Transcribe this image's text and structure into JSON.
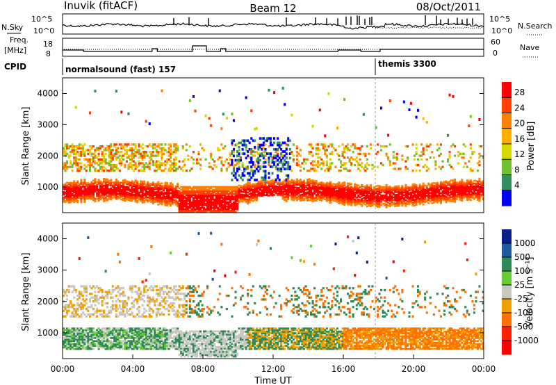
{
  "header": {
    "station": "Inuvik (fitACF)",
    "beam": "Beam 12",
    "date": "08/Oct/2011"
  },
  "noise_panel": {
    "left_label": "N.Sky",
    "right_label": "N.Search",
    "tick_top": "10^5",
    "tick_bottom": "10^0"
  },
  "freq_panel": {
    "left_label_1": "Freq.",
    "left_label_2": "[MHz]",
    "right_label": "Nave",
    "left_ticks": [
      "18",
      "8"
    ],
    "right_ticks": [
      "60",
      "0"
    ]
  },
  "cpid_panel": {
    "label": "CPID",
    "modes": [
      {
        "name": "normalsound (fast) 157",
        "start_hour": 0
      },
      {
        "name": "themis 3300",
        "start_hour": 18
      }
    ]
  },
  "chart_data": [
    {
      "type": "heatmap",
      "name": "power",
      "ylabel": "Slant Range [km]",
      "xlabel": "",
      "ylim": [
        180,
        4500
      ],
      "yticks": [
        "1000",
        "2000",
        "3000",
        "4000"
      ],
      "colorbar": {
        "label": "Power [dB]",
        "ticks": [
          "28",
          "24",
          "20",
          "16",
          "12",
          "8",
          "4"
        ],
        "colors": [
          "#ff0000",
          "#ff4000",
          "#ff8000",
          "#ffb000",
          "#d8d800",
          "#70c030",
          "#2f8f5f",
          "#0000ff"
        ]
      }
    },
    {
      "type": "heatmap",
      "name": "velocity",
      "ylabel": "Slant Range [km]",
      "xlabel": "Time UT",
      "ylim": [
        180,
        4500
      ],
      "yticks": [
        "1000",
        "2000",
        "3000",
        "4000"
      ],
      "xticks": [
        "00:00",
        "04:00",
        "08:00",
        "12:00",
        "16:00",
        "20:00",
        "00:00"
      ],
      "colorbar": {
        "label": "Velocity [m s⁻¹]",
        "ticks": [
          "1000",
          "500",
          "100",
          "25",
          "-25",
          "-100",
          "-500",
          "-1000"
        ],
        "colors": [
          "#0a1e8c",
          "#1e5aa0",
          "#2e8b57",
          "#66cc33",
          "#c8c8c0",
          "#f0a000",
          "#ff7000",
          "#ff2000",
          "#ff0000"
        ]
      }
    }
  ],
  "colors": {
    "axis": "#000000",
    "missing": "#ffffff"
  }
}
